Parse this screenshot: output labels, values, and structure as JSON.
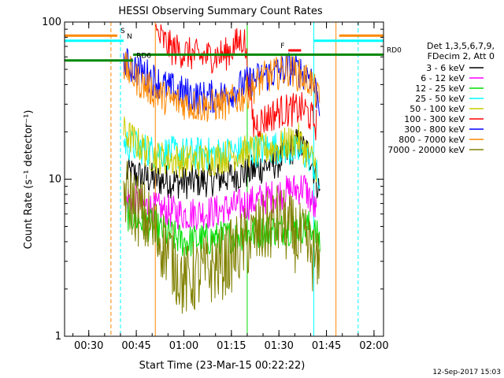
{
  "chart_data": {
    "type": "line",
    "title": "HESSI Observing Summary Count Rates",
    "xlabel": "Start Time (23-Mar-15 00:22:22)",
    "ylabel": "Count Rate (s⁻¹ detector⁻¹)",
    "xlim": [
      "00:22:22",
      "02:03:00"
    ],
    "ylim": [
      1,
      100
    ],
    "yscale": "log",
    "x_ticks": [
      "00:30",
      "00:45",
      "01:00",
      "01:15",
      "01:30",
      "01:45",
      "02:00"
    ],
    "y_ticks": [
      "1",
      "10",
      "100"
    ],
    "footer_date": "12-Sep-2017 15:03",
    "legend": {
      "placement": "right",
      "header": [
        "Det 1,3,5,6,7,9,",
        "FDecim 2, Att 0"
      ]
    },
    "series": [
      {
        "name": "3 - 6 keV",
        "color": "#000000",
        "x": [
          "00:42",
          "00:50",
          "01:00",
          "01:10",
          "01:20",
          "01:30",
          "01:36",
          "01:40",
          "01:43"
        ],
        "values": [
          11,
          10,
          9.5,
          10,
          11,
          13,
          17,
          14,
          8
        ]
      },
      {
        "name": "6 - 12 keV",
        "color": "#ff00ff",
        "x": [
          "00:42",
          "00:50",
          "01:00",
          "01:10",
          "01:20",
          "01:30",
          "01:38",
          "01:42"
        ],
        "values": [
          7.5,
          6.5,
          6,
          6.2,
          7,
          8,
          9,
          6
        ]
      },
      {
        "name": "12 - 25 keV",
        "color": "#00dd00",
        "x": [
          "00:42",
          "00:50",
          "01:00",
          "01:10",
          "01:20",
          "01:30",
          "01:40",
          "01:43"
        ],
        "values": [
          6,
          5,
          4,
          4.2,
          4.5,
          4.8,
          5,
          4
        ]
      },
      {
        "name": "25 - 50 keV",
        "color": "#00ffff",
        "x": [
          "00:41",
          "00:50",
          "01:00",
          "01:10",
          "01:20",
          "01:30",
          "01:40",
          "01:43"
        ],
        "values": [
          17,
          15,
          14.5,
          14.5,
          15,
          16,
          14,
          9
        ]
      },
      {
        "name": "50 - 100 keV",
        "color": "#cccc00",
        "x": [
          "00:41",
          "00:50",
          "01:00",
          "01:10",
          "01:20",
          "01:30",
          "01:36",
          "01:42"
        ],
        "values": [
          20,
          14,
          13,
          13.5,
          15,
          16,
          18,
          12
        ]
      },
      {
        "name": "100 - 300 keV",
        "color": "#ff0000",
        "x": [
          "00:51",
          "00:56",
          "01:05",
          "01:13",
          "01:19",
          "01:22",
          "01:30",
          "01:38",
          "01:42"
        ],
        "values": [
          85,
          68,
          60,
          62,
          80,
          22,
          27,
          28,
          22
        ]
      },
      {
        "name": "300 - 800 keV",
        "color": "#0000ff",
        "x": [
          "00:41",
          "00:47",
          "00:55",
          "01:05",
          "01:13",
          "01:19",
          "01:25",
          "01:33",
          "01:40",
          "01:43"
        ],
        "values": [
          55,
          48,
          38,
          33,
          34,
          40,
          45,
          51,
          46,
          30
        ]
      },
      {
        "name": "800 - 7000 keV",
        "color": "#ff8800",
        "x": [
          "00:41",
          "00:47",
          "00:55",
          "01:05",
          "01:13",
          "01:19",
          "01:25",
          "01:33",
          "01:40",
          "01:43"
        ],
        "values": [
          52,
          40,
          32,
          29,
          30,
          34,
          44,
          50,
          42,
          30
        ]
      },
      {
        "name": "7000 - 20000 keV",
        "color": "#808000",
        "x": [
          "00:41",
          "00:48",
          "00:55",
          "01:00",
          "01:05",
          "01:13",
          "01:20",
          "01:30",
          "01:40",
          "01:43"
        ],
        "values": [
          8.5,
          5.5,
          3.5,
          2.2,
          2.5,
          3,
          4,
          5.5,
          3.5,
          2.5
        ]
      }
    ],
    "flags": [
      {
        "label": "S",
        "color": "#ff8800",
        "value": 82,
        "x_start": "00:22:22",
        "x_end": "00:39",
        "x_start2": "01:49",
        "x_end2": "02:03:00"
      },
      {
        "label": "N",
        "color": "#00ffff",
        "value": 76,
        "x_start": "00:22:22",
        "x_end": "00:41",
        "x_start2": "01:41",
        "x_end2": "02:03:00"
      },
      {
        "label": "RD0",
        "color": "#008800",
        "value": 62,
        "x_start": "00:44",
        "x_end": "02:03:00"
      },
      {
        "label": "RD6",
        "color": "#008800",
        "value": 57,
        "x_start": "00:22:22",
        "x_end": "00:44"
      },
      {
        "label": "F",
        "color": "#ff0000",
        "value": 66,
        "x_start": "01:33",
        "x_end": "01:37"
      }
    ],
    "vertical_markers": [
      {
        "x": "00:37",
        "color": "#ff8800",
        "style": "dashed"
      },
      {
        "x": "00:40",
        "color": "#00ffff",
        "style": "dashed"
      },
      {
        "x": "00:51",
        "color": "#ff8800",
        "style": "solid"
      },
      {
        "x": "01:20",
        "color": "#00dd00",
        "style": "solid"
      },
      {
        "x": "01:41",
        "color": "#00ffff",
        "style": "solid"
      },
      {
        "x": "01:48",
        "color": "#ff8800",
        "style": "solid"
      },
      {
        "x": "01:55",
        "color": "#00ffff",
        "style": "dashed"
      }
    ]
  }
}
